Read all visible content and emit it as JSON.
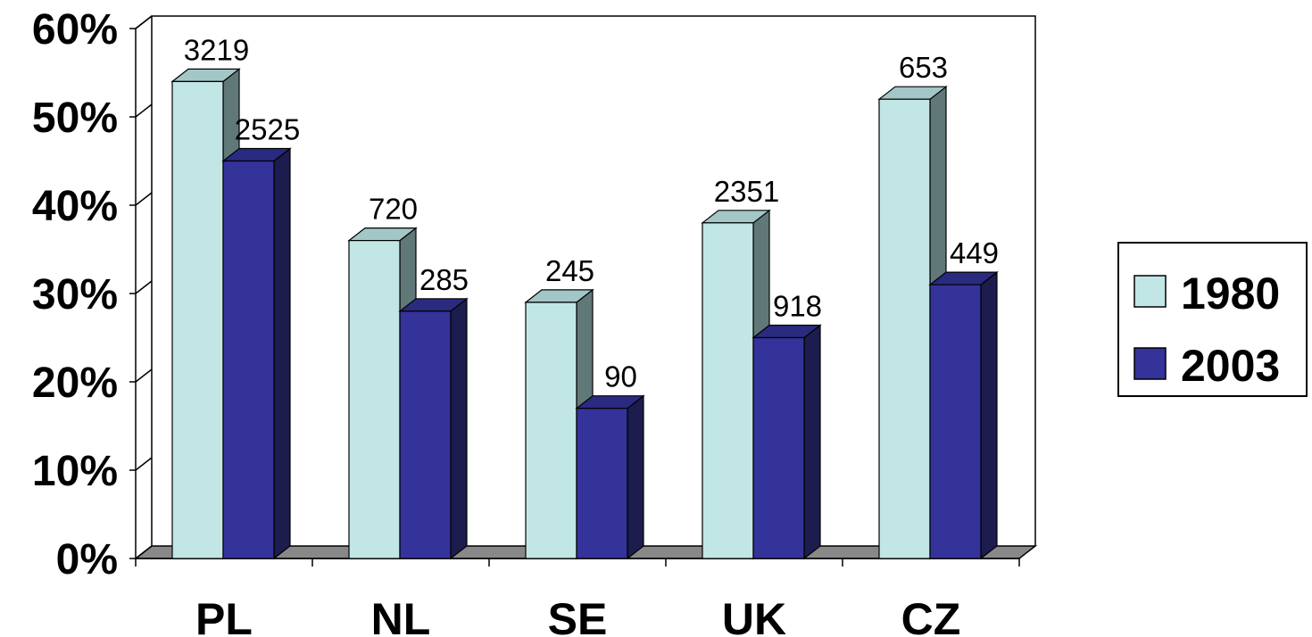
{
  "chart_data": {
    "type": "bar",
    "categories": [
      "PL",
      "NL",
      "SE",
      "UK",
      "CZ"
    ],
    "series": [
      {
        "name": "1980",
        "values": [
          54,
          36,
          29,
          38,
          52
        ],
        "labels": [
          "3219",
          "720",
          "245",
          "2351",
          "653"
        ]
      },
      {
        "name": "2003",
        "values": [
          45,
          28,
          17,
          25,
          31
        ],
        "labels": [
          "2525",
          "285",
          "90",
          "918",
          "449"
        ]
      }
    ],
    "yticks": [
      "0%",
      "10%",
      "20%",
      "30%",
      "40%",
      "50%",
      "60%"
    ],
    "ylim": [
      0,
      60
    ],
    "legend_position": "right",
    "title": "",
    "xlabel": "",
    "ylabel": ""
  },
  "colors": {
    "series_1980_front": "#c2e6e6",
    "series_1980_top": "#a3c6c6",
    "series_1980_side": "#607878",
    "series_2003_front": "#343399",
    "series_2003_top": "#2a2a80",
    "series_2003_side": "#1c1c4e",
    "floor": "#888888"
  }
}
